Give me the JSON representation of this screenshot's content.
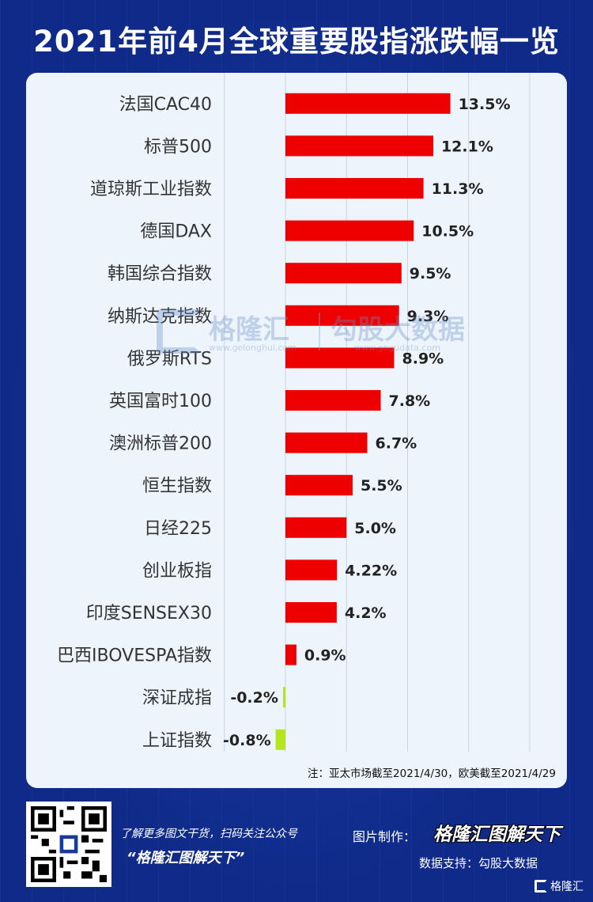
{
  "title": "2021年前4月全球重要股指涨跌幅一览",
  "note": "注：亚太市场截至2021/4/30，欧美截至2021/4/29",
  "watermark": {
    "brand": "格隆汇",
    "brand_url": "www.gelonghui.com",
    "data_brand": "勾股大数据",
    "data_url": "www.gogudata.com"
  },
  "footer": {
    "tagline1": "了解更多图文干货，扫码关注公众号",
    "tagline2": "“格隆汇图解天下”",
    "maker_label": "图片制作：",
    "maker_brand": "格隆汇图解天下",
    "support": "数据支持：勾股大数据",
    "logo_text": "格隆汇"
  },
  "colors": {
    "positive": "#ee0000",
    "negative": "#b5e61d",
    "background": "#0f2a88",
    "panel": "#eef4fb"
  },
  "chart_data": {
    "type": "bar",
    "orientation": "horizontal",
    "categories": [
      "法国CAC40",
      "标普500",
      "道琼斯工业指数",
      "德国DAX",
      "韩国综合指数",
      "纳斯达克指数",
      "俄罗斯RTS",
      "英国富时100",
      "澳洲标普200",
      "恒生指数",
      "日经225",
      "创业板指",
      "印度SENSEX30",
      "巴西IBOVESPA指数",
      "深证成指",
      "上证指数"
    ],
    "values": [
      13.5,
      12.1,
      11.3,
      10.5,
      9.5,
      9.3,
      8.9,
      7.8,
      6.7,
      5.5,
      5.0,
      4.22,
      4.2,
      0.9,
      -0.2,
      -0.8
    ],
    "value_labels": [
      "13.5%",
      "12.1%",
      "11.3%",
      "10.5%",
      "9.5%",
      "9.3%",
      "8.9%",
      "7.8%",
      "6.7%",
      "5.5%",
      "5.0%",
      "4.22%",
      "4.2%",
      "0.9%",
      "-0.2%",
      "-0.8%"
    ],
    "xlim": [
      -5,
      20
    ],
    "grid": true
  }
}
